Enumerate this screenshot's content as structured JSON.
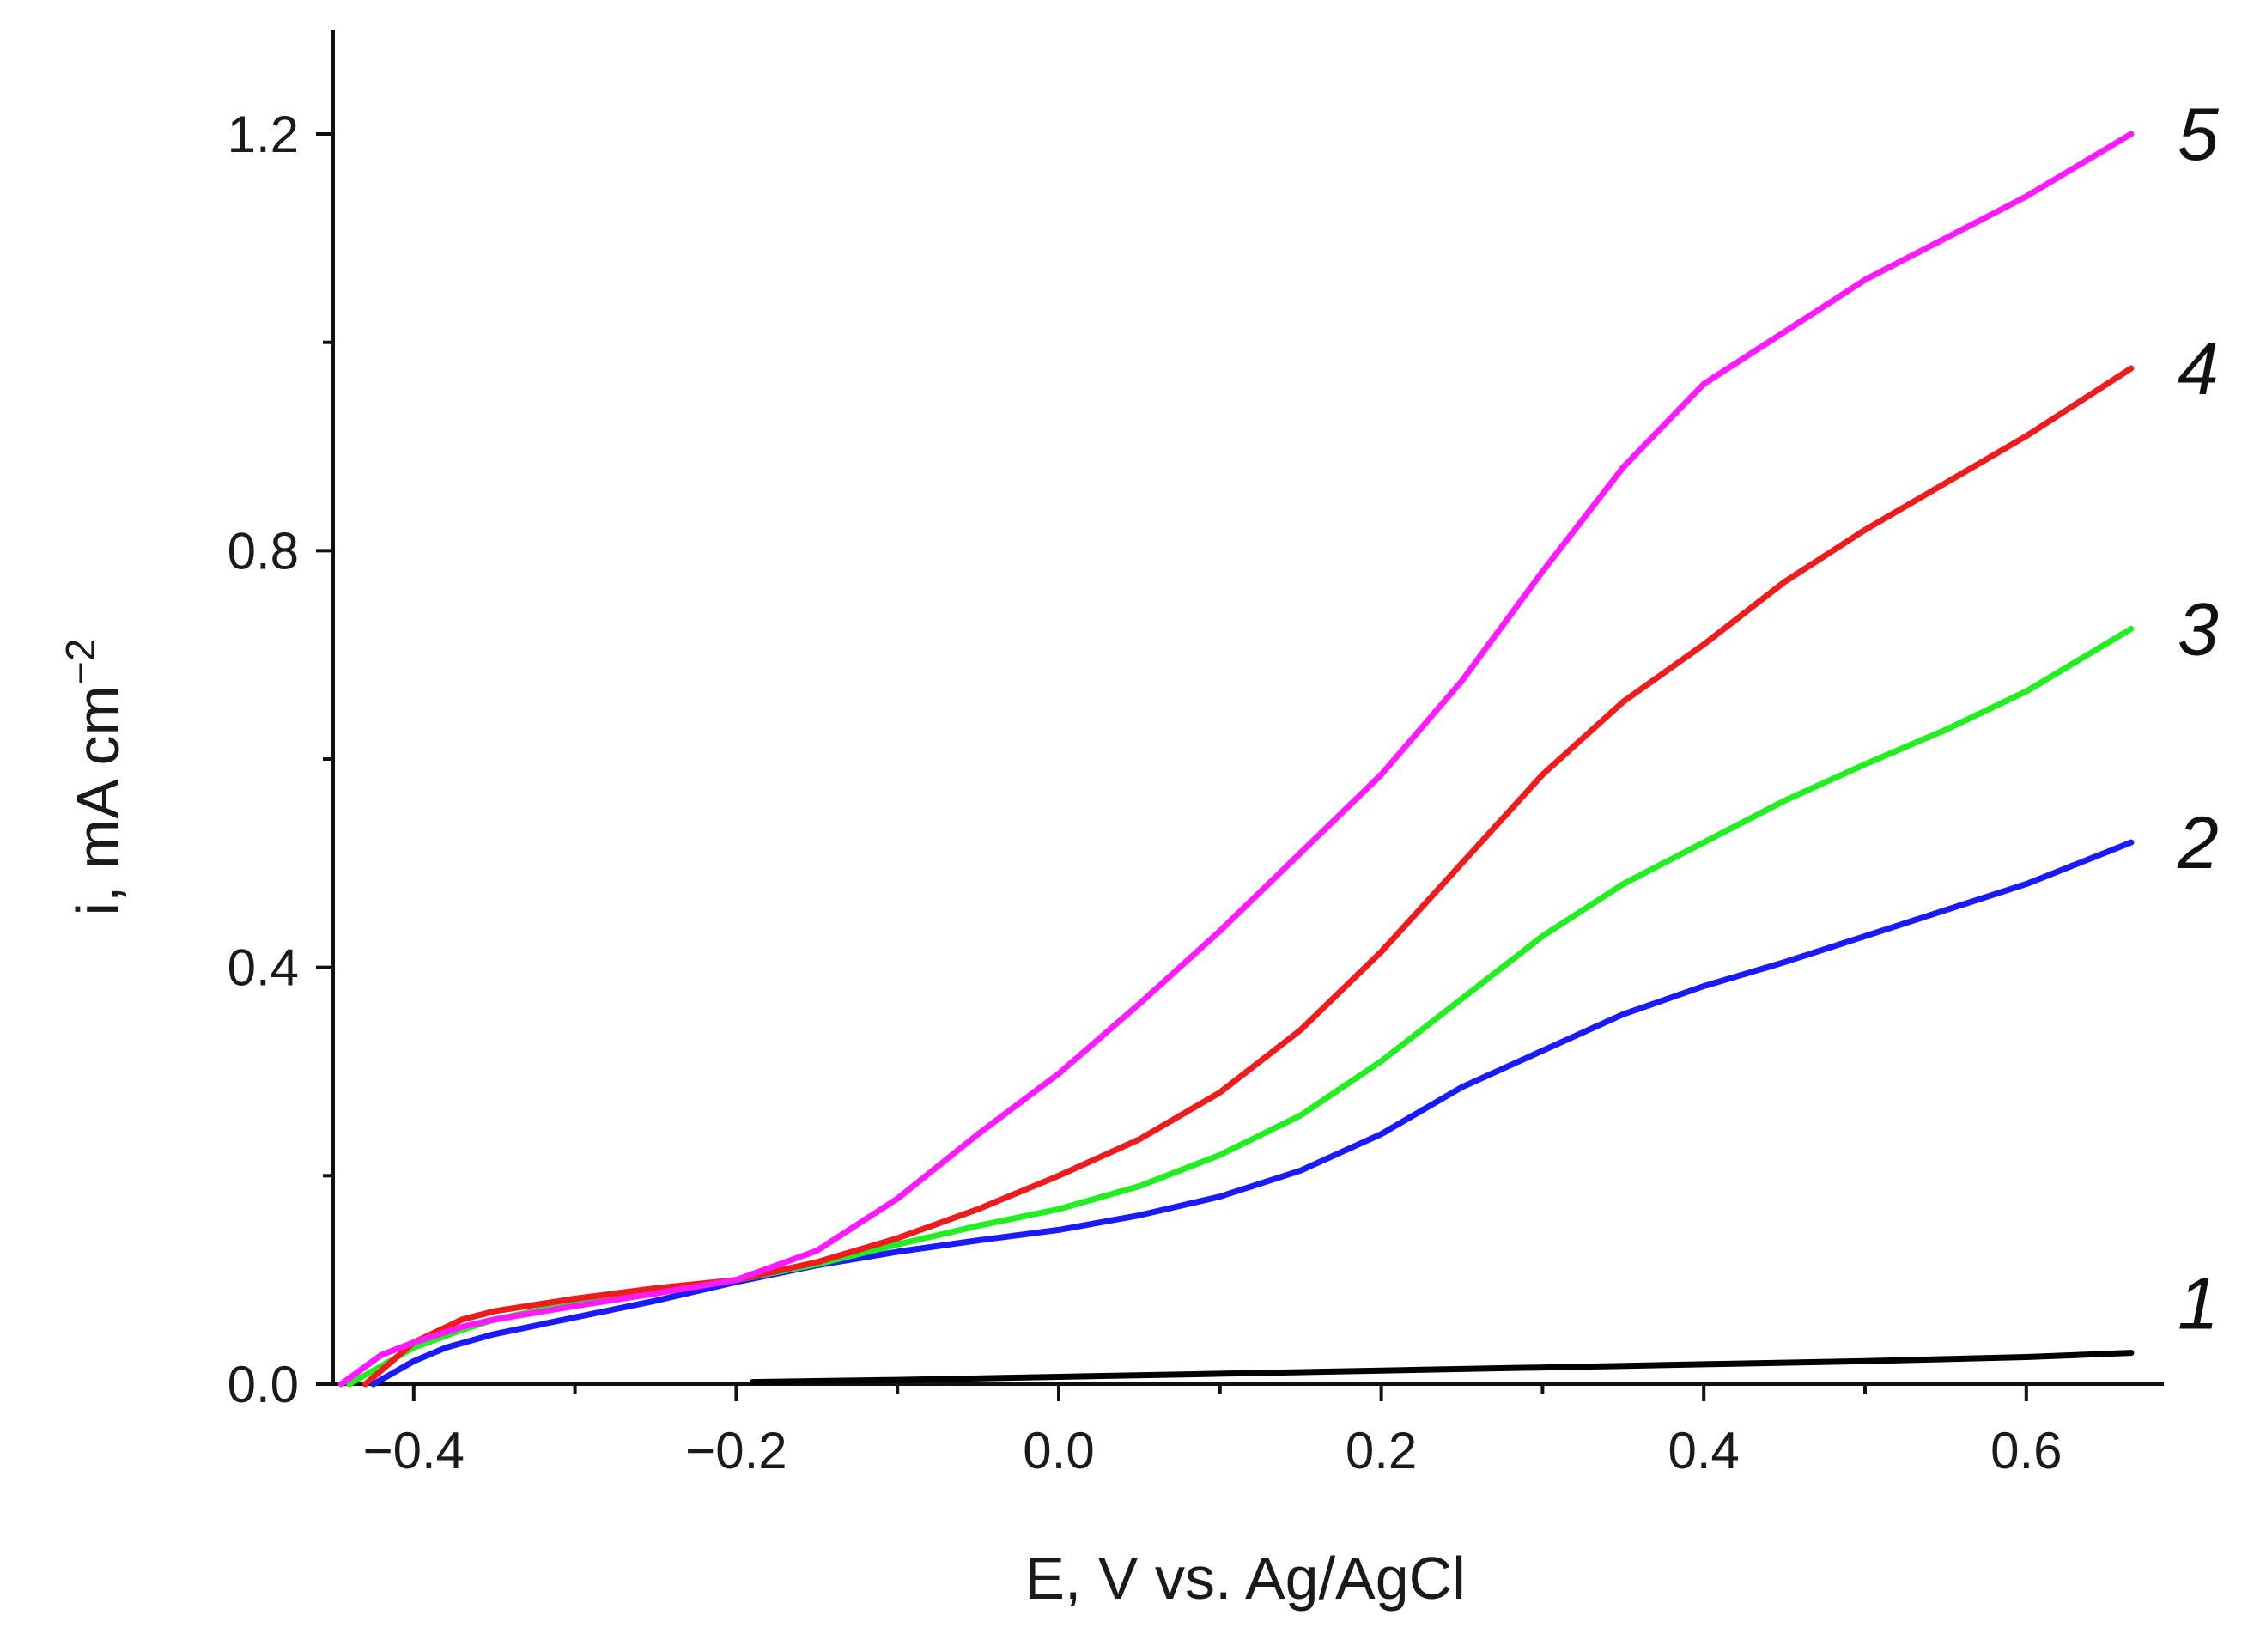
{
  "chart_data": {
    "type": "line",
    "title": "",
    "xlabel": "E, V vs. Ag/AgCl",
    "ylabel": {
      "main": "i, mA cm",
      "superscript": "−2"
    },
    "xlim": [
      -0.45,
      0.695
    ],
    "ylim": [
      0,
      1.3
    ],
    "x_major_ticks": [
      -0.4,
      -0.2,
      0.0,
      0.2,
      0.4,
      0.6
    ],
    "x_tick_labels": [
      "−0.4",
      "−0.2",
      "0.0",
      "0.2",
      "0.4",
      "0.6"
    ],
    "x_minor_ticks": [
      -0.3,
      -0.1,
      0.1,
      0.3,
      0.5
    ],
    "y_major_ticks": [
      0.0,
      0.4,
      0.8,
      1.2
    ],
    "y_tick_labels": [
      "0.0",
      "0.4",
      "0.8",
      "1.2"
    ],
    "y_minor_ticks": [
      0.2,
      0.6,
      1.0
    ],
    "grid": false,
    "series": [
      {
        "name": "1",
        "color": "#000000",
        "x": [
          -0.19,
          -0.1,
          0.0,
          0.1,
          0.2,
          0.3,
          0.4,
          0.5,
          0.6,
          0.665
        ],
        "y": [
          0.002,
          0.004,
          0.007,
          0.01,
          0.013,
          0.016,
          0.019,
          0.022,
          0.026,
          0.03
        ]
      },
      {
        "name": "2",
        "color": "#1a1aff",
        "x": [
          -0.425,
          -0.4,
          -0.38,
          -0.35,
          -0.3,
          -0.25,
          -0.2,
          -0.15,
          -0.1,
          -0.05,
          0.0,
          0.05,
          0.1,
          0.15,
          0.2,
          0.25,
          0.3,
          0.35,
          0.4,
          0.45,
          0.5,
          0.55,
          0.6,
          0.665
        ],
        "y": [
          0.0,
          0.022,
          0.035,
          0.048,
          0.064,
          0.08,
          0.098,
          0.114,
          0.127,
          0.138,
          0.148,
          0.162,
          0.18,
          0.205,
          0.24,
          0.285,
          0.32,
          0.355,
          0.382,
          0.405,
          0.43,
          0.455,
          0.48,
          0.52
        ]
      },
      {
        "name": "3",
        "color": "#22ee22",
        "x": [
          -0.44,
          -0.4,
          -0.37,
          -0.35,
          -0.3,
          -0.25,
          -0.2,
          -0.15,
          -0.1,
          -0.05,
          0.0,
          0.05,
          0.1,
          0.15,
          0.2,
          0.25,
          0.3,
          0.35,
          0.4,
          0.45,
          0.5,
          0.55,
          0.6,
          0.665
        ],
        "y": [
          0.0,
          0.035,
          0.052,
          0.062,
          0.078,
          0.09,
          0.1,
          0.115,
          0.134,
          0.152,
          0.168,
          0.19,
          0.22,
          0.258,
          0.31,
          0.37,
          0.43,
          0.48,
          0.52,
          0.56,
          0.595,
          0.628,
          0.665,
          0.725
        ]
      },
      {
        "name": "4",
        "color": "#ee1c1c",
        "x": [
          -0.43,
          -0.4,
          -0.37,
          -0.35,
          -0.3,
          -0.25,
          -0.2,
          -0.15,
          -0.1,
          -0.05,
          0.0,
          0.05,
          0.1,
          0.15,
          0.2,
          0.25,
          0.3,
          0.35,
          0.4,
          0.45,
          0.5,
          0.55,
          0.6,
          0.665
        ],
        "y": [
          0.0,
          0.04,
          0.062,
          0.07,
          0.082,
          0.092,
          0.1,
          0.117,
          0.14,
          0.168,
          0.2,
          0.235,
          0.28,
          0.34,
          0.415,
          0.5,
          0.585,
          0.655,
          0.71,
          0.77,
          0.82,
          0.865,
          0.91,
          0.975
        ]
      },
      {
        "name": "5",
        "color": "#ff1aff",
        "x": [
          -0.445,
          -0.42,
          -0.4,
          -0.37,
          -0.35,
          -0.3,
          -0.25,
          -0.2,
          -0.15,
          -0.1,
          -0.05,
          0.0,
          0.05,
          0.1,
          0.15,
          0.2,
          0.25,
          0.3,
          0.35,
          0.4,
          0.45,
          0.5,
          0.55,
          0.6,
          0.665
        ],
        "y": [
          0.0,
          0.028,
          0.04,
          0.055,
          0.062,
          0.075,
          0.087,
          0.1,
          0.128,
          0.178,
          0.24,
          0.298,
          0.365,
          0.435,
          0.51,
          0.585,
          0.675,
          0.78,
          0.88,
          0.96,
          1.01,
          1.06,
          1.1,
          1.14,
          1.2
        ]
      }
    ],
    "curve_labels": [
      {
        "text": "1",
        "series": "1"
      },
      {
        "text": "2",
        "series": "2"
      },
      {
        "text": "3",
        "series": "3"
      },
      {
        "text": "4",
        "series": "4"
      },
      {
        "text": "5",
        "series": "5"
      }
    ]
  }
}
